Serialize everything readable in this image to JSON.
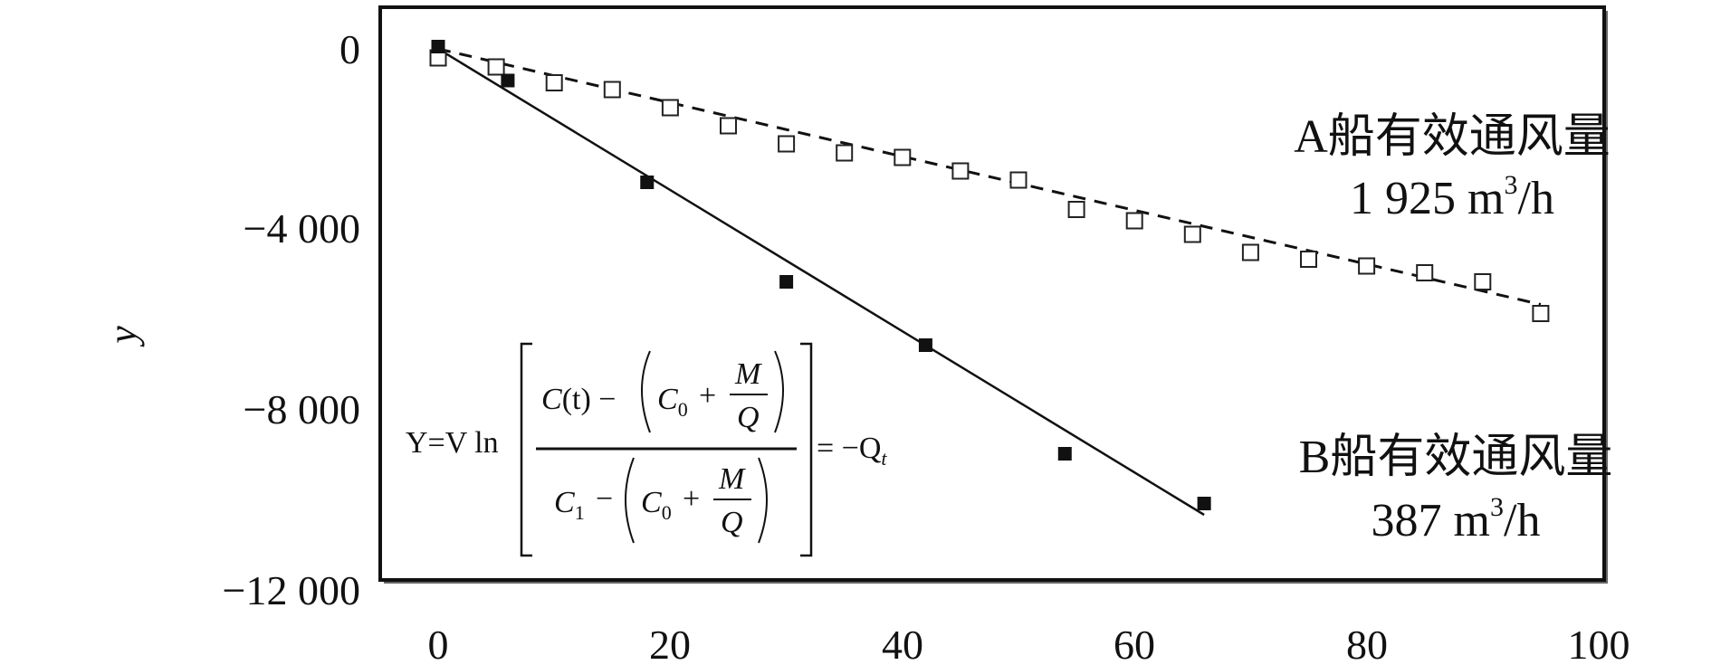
{
  "chart_data": {
    "type": "scatter",
    "xlim": [
      0,
      100
    ],
    "ylim": [
      -12000,
      500
    ],
    "x_ticks": [
      "0",
      "20",
      "40",
      "60",
      "80",
      "100"
    ],
    "y_ticks": [
      "0",
      "−4 000",
      "−8 000",
      "−12 000"
    ],
    "ylabel": "y",
    "xlabel": "",
    "grid": false,
    "series": [
      {
        "marker": "open-square",
        "line": "dashed",
        "x": [
          0,
          5,
          10,
          15,
          20,
          25,
          30,
          35,
          40,
          45,
          50,
          55,
          60,
          65,
          70,
          75,
          80,
          85,
          90,
          95
        ],
        "y": [
          -200,
          -400,
          -750,
          -900,
          -1300,
          -1700,
          -2100,
          -2300,
          -2400,
          -2700,
          -2900,
          -3550,
          -3800,
          -4100,
          -4500,
          -4650,
          -4800,
          -4950,
          -5150,
          -5850
        ],
        "fit": {
          "x": [
            0,
            95
          ],
          "y": [
            0,
            -5650
          ]
        }
      },
      {
        "marker": "filled-square",
        "line": "solid",
        "x": [
          0,
          6,
          18,
          30,
          42,
          54,
          66
        ],
        "y": [
          50,
          -700,
          -2950,
          -5150,
          -6550,
          -8950,
          -10050
        ],
        "fit": {
          "x": [
            0,
            66
          ],
          "y": [
            0,
            -10300
          ]
        }
      }
    ],
    "annotations": {
      "a_line1": "A船有效通风量",
      "a_line2_num": "1 925 m",
      "a_line2_sup": "3",
      "a_line2_unit": "/h",
      "b_line1": "B船有效通风量",
      "b_line2_num": "387 m",
      "b_line2_sup": "3",
      "b_line2_unit": "/h"
    },
    "equation": {
      "lhs": "Y=V ln",
      "num_C": "C",
      "num_t": "(t) −",
      "C": "C",
      "sub0": "0",
      "sub1": "1",
      "plus": "+",
      "minus": "−",
      "M": "M",
      "Q": "Q",
      "rhs": "= −Q",
      "rhs_sub": "t"
    }
  }
}
